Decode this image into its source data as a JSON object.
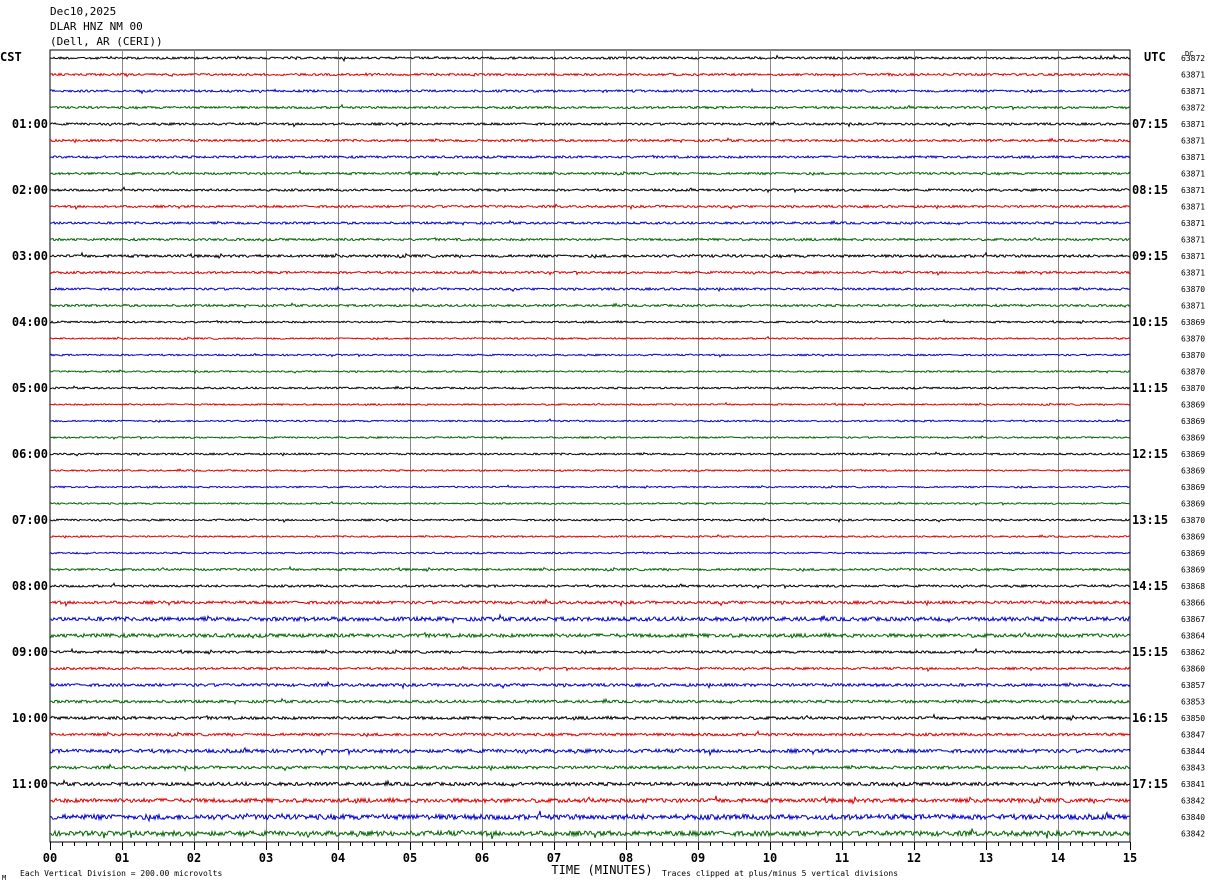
{
  "header": {
    "date": "Dec10,2025",
    "station": "DLAR HNZ NM 00",
    "location": "(Dell, AR (CERI))"
  },
  "left_zone_label": "CST",
  "right_zone_label": "UTC",
  "dc_label": "DC",
  "footer": {
    "scale_note": "Each Vertical Division =  200.00 microvolts",
    "clip_note": "Traces clipped at plus/minus 5 vertical divisions",
    "corner_mark": "M"
  },
  "chart_data": {
    "type": "line",
    "title": "DLAR HNZ NM 00",
    "xlabel": "TIME (MINUTES)",
    "ylabel": "",
    "xlim": [
      0,
      15
    ],
    "x_ticks": [
      "00",
      "01",
      "02",
      "03",
      "04",
      "05",
      "06",
      "07",
      "08",
      "09",
      "10",
      "11",
      "12",
      "13",
      "14",
      "15"
    ],
    "trace_count": 48,
    "trace_colors": [
      "#000000",
      "#dd0000",
      "#0000cc",
      "#006600"
    ],
    "left_time_labels": [
      "01:00",
      "02:00",
      "03:00",
      "04:00",
      "05:00",
      "06:00",
      "07:00",
      "08:00",
      "09:00",
      "10:00",
      "11:00"
    ],
    "right_time_labels": [
      "07:15",
      "08:15",
      "09:15",
      "10:15",
      "11:15",
      "12:15",
      "13:15",
      "14:15",
      "15:15",
      "16:15",
      "17:15"
    ],
    "label_every_n_traces": 4,
    "label_first_trace": 4,
    "dc_offsets": [
      63872,
      63871,
      63871,
      63872,
      63871,
      63871,
      63871,
      63871,
      63871,
      63871,
      63871,
      63871,
      63871,
      63871,
      63870,
      63871,
      63869,
      63870,
      63870,
      63870,
      63870,
      63869,
      63869,
      63869,
      63869,
      63869,
      63869,
      63869,
      63870,
      63869,
      63869,
      63869,
      63868,
      63866,
      63867,
      63864,
      63862,
      63860,
      63857,
      63853,
      63850,
      63847,
      63844,
      63843,
      63841,
      63842,
      63840,
      63842
    ],
    "trace_noise_level": [
      1,
      1,
      1,
      1,
      1,
      1,
      1,
      1,
      1,
      1,
      1,
      1,
      1.2,
      1,
      1,
      1,
      0.8,
      0.7,
      0.7,
      0.7,
      0.8,
      0.7,
      0.7,
      0.7,
      0.8,
      0.7,
      0.7,
      0.7,
      0.8,
      0.7,
      0.7,
      1,
      1,
      1.3,
      1.8,
      1.6,
      1.1,
      1,
      1.3,
      1.2,
      1.3,
      1.2,
      1.6,
      1.3,
      1.5,
      1.8,
      2.3,
      2.2
    ]
  }
}
